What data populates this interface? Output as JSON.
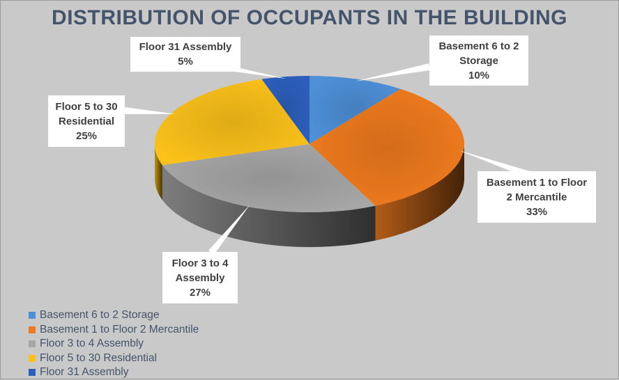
{
  "chart_data": {
    "type": "pie",
    "title": "DISTRIBUTION OF OCCUPANTS IN THE BUILDING",
    "categories": [
      "Basement 6 to 2 Storage",
      "Basement 1 to Floor 2 Mercantile",
      "Floor 3 to 4 Assembly",
      "Floor 5 to 30 Residential",
      "Floor 31 Assembly"
    ],
    "values": [
      10,
      33,
      27,
      25,
      5
    ],
    "data_labels": [
      "10%",
      "33%",
      "27%",
      "25%",
      "5%"
    ],
    "colors": [
      "#4e90d8",
      "#f07b1e",
      "#a7a7a7",
      "#fcc21a",
      "#2c5fbd"
    ],
    "legend_position": "bottom-left",
    "three_d": true
  }
}
